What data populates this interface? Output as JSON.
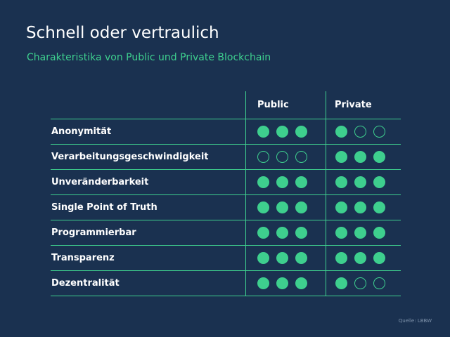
{
  "title": "Schnell oder vertraulich",
  "subtitle": "Charakteristika von Public und Private Blockchain",
  "columns": [
    "Public",
    "Private"
  ],
  "rows": [
    {
      "label": "Anonymität",
      "public": 3,
      "private": 1
    },
    {
      "label": "Verarbeitungsgeschwindigkeit",
      "public": 0,
      "private": 3
    },
    {
      "label": "Unveränderbarkeit",
      "public": 3,
      "private": 3
    },
    {
      "label": "Single Point of Truth",
      "public": 3,
      "private": 3
    },
    {
      "label": "Programmierbar",
      "public": 3,
      "private": 3
    },
    {
      "label": "Transparenz",
      "public": 3,
      "private": 3
    },
    {
      "label": "Dezentralität",
      "public": 3,
      "private": 1
    }
  ],
  "max_rating": 3,
  "source": "Quelle: LBBW",
  "colors": {
    "background": "#1a3150",
    "accent": "#3ecf8e",
    "text": "#ffffff"
  }
}
